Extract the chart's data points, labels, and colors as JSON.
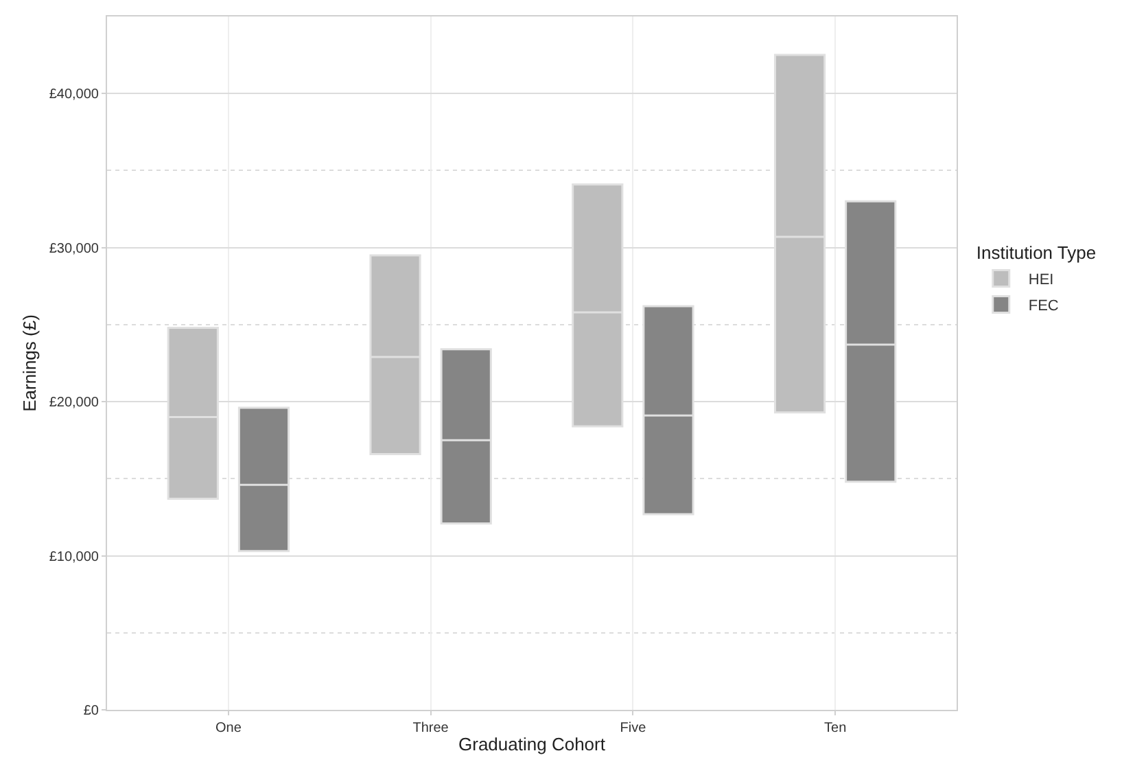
{
  "chart_data": {
    "type": "box",
    "xlabel": "Graduating Cohort",
    "ylabel": "Earnings (£)",
    "legend_title": "Institution Type",
    "categories": [
      "One",
      "Three",
      "Five",
      "Ten"
    ],
    "series": [
      {
        "name": "HEI",
        "color": "#bdbdbd",
        "boxes": [
          {
            "low": 13700,
            "q1": 13700,
            "median": 19000,
            "q3": 24800,
            "high": 24800
          },
          {
            "low": 16600,
            "q1": 16600,
            "median": 22900,
            "q3": 29500,
            "high": 29500
          },
          {
            "low": 18400,
            "q1": 18400,
            "median": 25800,
            "q3": 34100,
            "high": 34100
          },
          {
            "low": 19300,
            "q1": 19300,
            "median": 30700,
            "q3": 42500,
            "high": 42500
          }
        ]
      },
      {
        "name": "FEC",
        "color": "#858585",
        "boxes": [
          {
            "low": 10300,
            "q1": 10300,
            "median": 14600,
            "q3": 19600,
            "high": 19600
          },
          {
            "low": 12100,
            "q1": 12100,
            "median": 17500,
            "q3": 23400,
            "high": 23400
          },
          {
            "low": 12700,
            "q1": 12700,
            "median": 19100,
            "q3": 26200,
            "high": 26200
          },
          {
            "low": 14800,
            "q1": 14800,
            "median": 23700,
            "q3": 33000,
            "high": 33000
          }
        ]
      }
    ],
    "ylim": [
      0,
      45000
    ],
    "yticks": [
      {
        "value": 0,
        "label": "£0"
      },
      {
        "value": 10000,
        "label": "£10,000"
      },
      {
        "value": 20000,
        "label": "£20,000"
      },
      {
        "value": 30000,
        "label": "£30,000"
      },
      {
        "value": 40000,
        "label": "£40,000"
      }
    ],
    "grid": true,
    "legend": "right"
  }
}
